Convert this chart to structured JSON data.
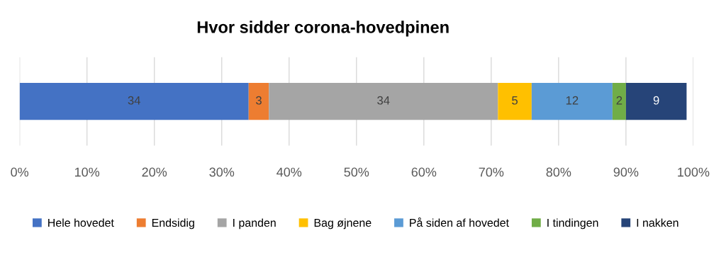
{
  "chart_data": {
    "type": "bar",
    "title": "Hvor sidder corona-hovedpinen",
    "orientation": "horizontal",
    "stacked": true,
    "categories": [
      null
    ],
    "series": [
      {
        "name": "Hele hovedet",
        "color": "#4472c4",
        "values": [
          34
        ]
      },
      {
        "name": "Endsidig",
        "color": "#ed7d31",
        "values": [
          3
        ]
      },
      {
        "name": "I panden",
        "color": "#a5a5a5",
        "values": [
          34
        ]
      },
      {
        "name": "Bag øjnene",
        "color": "#ffc000",
        "values": [
          5
        ]
      },
      {
        "name": "På siden af hovedet",
        "color": "#5b9bd5",
        "values": [
          12
        ]
      },
      {
        "name": "I tindingen",
        "color": "#70ad47",
        "values": [
          2
        ]
      },
      {
        "name": "I nakken",
        "color": "#264478",
        "values": [
          9
        ]
      }
    ],
    "xlim": [
      0,
      100
    ],
    "xticks": [
      {
        "value": 0,
        "label": "0%"
      },
      {
        "value": 10,
        "label": "10%"
      },
      {
        "value": 20,
        "label": "20%"
      },
      {
        "value": 30,
        "label": "30%"
      },
      {
        "value": 40,
        "label": "40%"
      },
      {
        "value": 50,
        "label": "50%"
      },
      {
        "value": 60,
        "label": "60%"
      },
      {
        "value": 70,
        "label": "70%"
      },
      {
        "value": 80,
        "label": "80%"
      },
      {
        "value": 90,
        "label": "90%"
      },
      {
        "value": 100,
        "label": "100%"
      }
    ],
    "tick_labels": "x",
    "grid": "x",
    "legend": "bottom",
    "data_labels": true
  }
}
